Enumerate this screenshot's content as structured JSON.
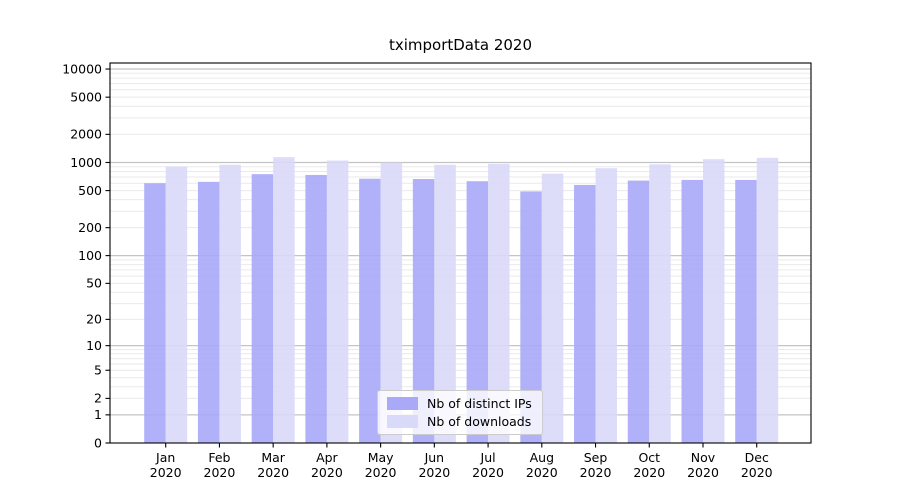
{
  "chart_data": {
    "type": "bar",
    "title": "tximportData 2020",
    "categories": [
      "Jan",
      "Feb",
      "Mar",
      "Apr",
      "May",
      "Jun",
      "Jul",
      "Aug",
      "Sep",
      "Oct",
      "Nov",
      "Dec"
    ],
    "year_label": "2020",
    "series": [
      {
        "name": "Nb of distinct IPs",
        "color": "#a9a9f8",
        "values": [
          600,
          620,
          750,
          735,
          670,
          665,
          630,
          490,
          575,
          640,
          650,
          650
        ]
      },
      {
        "name": "Nb of downloads",
        "color": "#d9d9fa",
        "values": [
          905,
          945,
          1140,
          1050,
          995,
          945,
          965,
          760,
          870,
          955,
          1085,
          1120
        ]
      }
    ],
    "y_axis": {
      "scale": "symlog",
      "tick_values": [
        0,
        1,
        2,
        5,
        10,
        20,
        50,
        100,
        200,
        500,
        1000,
        2000,
        5000,
        10000
      ],
      "major_grid_values": [
        1,
        10,
        100,
        1000,
        10000
      ],
      "axis_max": 11600
    },
    "x_axis": {
      "tick_label_line2": "2020"
    },
    "grid": true,
    "legend_position": "lower center",
    "colors": {
      "major_grid": "#c4c4c4",
      "minor_grid": "#eaeaea",
      "spine": "#000000",
      "text": "#000000"
    }
  }
}
